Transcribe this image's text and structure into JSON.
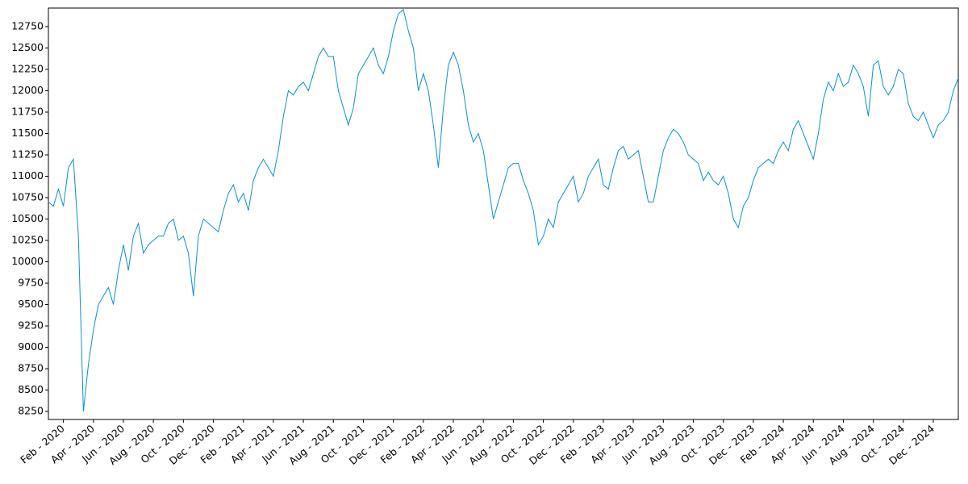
{
  "chart_data": {
    "type": "line",
    "categories": [
      null,
      null,
      null,
      "Feb - 2020",
      null,
      null,
      null,
      null,
      null,
      "Apr - 2020",
      null,
      null,
      null,
      null,
      null,
      "Jun - 2020",
      null,
      null,
      null,
      null,
      null,
      "Aug - 2020",
      null,
      null,
      null,
      null,
      null,
      "Oct - 2020",
      null,
      null,
      null,
      null,
      null,
      "Dec - 2020",
      null,
      null,
      null,
      null,
      null,
      "Feb - 2021",
      null,
      null,
      null,
      null,
      null,
      "Apr - 2021",
      null,
      null,
      null,
      null,
      null,
      "Jun - 2021",
      null,
      null,
      null,
      null,
      null,
      "Aug - 2021",
      null,
      null,
      null,
      null,
      null,
      "Oct - 2021",
      null,
      null,
      null,
      null,
      null,
      "Dec - 2021",
      null,
      null,
      null,
      null,
      null,
      "Feb - 2022",
      null,
      null,
      null,
      null,
      null,
      "Apr - 2022",
      null,
      null,
      null,
      null,
      null,
      "Jun - 2022",
      null,
      null,
      null,
      null,
      null,
      "Aug - 2022",
      null,
      null,
      null,
      null,
      null,
      "Oct - 2022",
      null,
      null,
      null,
      null,
      null,
      "Dec - 2022",
      null,
      null,
      null,
      null,
      null,
      "Feb - 2023",
      null,
      null,
      null,
      null,
      null,
      "Apr - 2023",
      null,
      null,
      null,
      null,
      null,
      "Jun - 2023",
      null,
      null,
      null,
      null,
      null,
      "Aug - 2023",
      null,
      null,
      null,
      null,
      null,
      "Oct - 2023",
      null,
      null,
      null,
      null,
      null,
      "Dec - 2023",
      null,
      null,
      null,
      null,
      null,
      "Feb - 2024",
      null,
      null,
      null,
      null,
      null,
      "Apr - 2024",
      null,
      null,
      null,
      null,
      null,
      "Jun - 2024",
      null,
      null,
      null,
      null,
      null,
      "Aug - 2024",
      null,
      null,
      null,
      null,
      null,
      "Oct - 2024",
      null,
      null,
      null,
      null,
      null,
      "Dec - 2024",
      null,
      null,
      null,
      null,
      null
    ],
    "values": [
      10700,
      10650,
      10850,
      10650,
      11100,
      11200,
      10300,
      8250,
      8800,
      9200,
      9500,
      9600,
      9700,
      9500,
      9900,
      10200,
      9900,
      10300,
      10450,
      10100,
      10200,
      10250,
      10300,
      10300,
      10450,
      10500,
      10250,
      10300,
      10100,
      9600,
      10300,
      10500,
      10450,
      10400,
      10350,
      10600,
      10800,
      10900,
      10700,
      10800,
      10600,
      10950,
      11100,
      11200,
      11100,
      11000,
      11300,
      11700,
      12000,
      11950,
      12050,
      12100,
      12000,
      12200,
      12400,
      12500,
      12400,
      12400,
      12000,
      11800,
      11600,
      11800,
      12200,
      12300,
      12400,
      12500,
      12300,
      12200,
      12400,
      12700,
      12900,
      12950,
      12700,
      12500,
      12000,
      12200,
      12000,
      11600,
      11100,
      11800,
      12300,
      12450,
      12300,
      12000,
      11600,
      11400,
      11500,
      11300,
      10900,
      10500,
      10700,
      10900,
      11100,
      11150,
      11150,
      10950,
      10800,
      10600,
      10200,
      10300,
      10500,
      10400,
      10700,
      10800,
      10900,
      11000,
      10700,
      10800,
      11000,
      11100,
      11200,
      10900,
      10850,
      11100,
      11300,
      11350,
      11200,
      11250,
      11300,
      11000,
      10700,
      10700,
      11000,
      11300,
      11450,
      11550,
      11500,
      11400,
      11250,
      11200,
      11150,
      10950,
      11050,
      10950,
      10900,
      11000,
      10800,
      10500,
      10400,
      10650,
      10750,
      10950,
      11100,
      11150,
      11200,
      11150,
      11300,
      11400,
      11300,
      11550,
      11650,
      11500,
      11350,
      11200,
      11500,
      11900,
      12100,
      12000,
      12200,
      12050,
      12100,
      12300,
      12200,
      12050,
      11700,
      12300,
      12350,
      12050,
      11950,
      12050,
      12250,
      12200,
      11850,
      11700,
      11650,
      11750,
      11600,
      11450,
      11600,
      11650,
      11750,
      12000,
      12150
    ],
    "color": "#0a8fd6",
    "ylim": [
      8156,
      12967
    ],
    "yticks": [
      8250,
      8500,
      8750,
      9000,
      9250,
      9500,
      9750,
      10000,
      10250,
      10500,
      10750,
      11000,
      11250,
      11500,
      11750,
      12000,
      12250,
      12500,
      12750
    ]
  }
}
